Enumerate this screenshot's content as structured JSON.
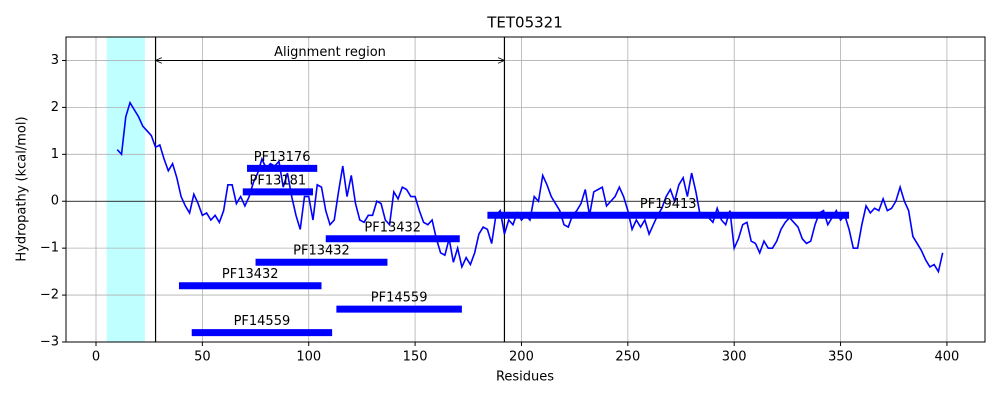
{
  "chart_data": {
    "type": "line",
    "title": "TET05321",
    "x_label": "Residues",
    "y_label": "Hydropathy (kcal/mol)",
    "xlim": [
      -14.1,
      417.9
    ],
    "ylim": [
      -3,
      3.5
    ],
    "xticks": [
      0,
      50,
      100,
      150,
      200,
      250,
      300,
      350,
      400
    ],
    "yticks": [
      {
        "value": -3,
        "label": "−3"
      },
      {
        "value": -2,
        "label": "−2"
      },
      {
        "value": -1,
        "label": "−1"
      },
      0,
      1,
      2,
      3
    ],
    "grid": true,
    "hline": 0,
    "highlight": {
      "x": [
        5,
        23
      ],
      "color": "#c0ffff"
    },
    "alignment_region": {
      "label": "Alignment region",
      "x": [
        28,
        192
      ],
      "y": 3
    },
    "series": [
      {
        "color": "#0000ff",
        "x": [
          10,
          12,
          14,
          16,
          18,
          20,
          22,
          24,
          26,
          28,
          30,
          32,
          34,
          36,
          38,
          40,
          42,
          44,
          46,
          48,
          50,
          52,
          54,
          56,
          58,
          60,
          62,
          64,
          66,
          68,
          70,
          72,
          74,
          76,
          78,
          80,
          82,
          84,
          86,
          88,
          90,
          92,
          94,
          96,
          98,
          100,
          102,
          104,
          106,
          108,
          110,
          112,
          114,
          116,
          118,
          120,
          122,
          124,
          126,
          128,
          130,
          132,
          134,
          136,
          138,
          140,
          142,
          144,
          146,
          148,
          150,
          152,
          154,
          156,
          158,
          160,
          162,
          164,
          166,
          168,
          170,
          172,
          174,
          176,
          178,
          180,
          182,
          184,
          186,
          188,
          190,
          192,
          194,
          196,
          198,
          200,
          202,
          204,
          206,
          208,
          210,
          212,
          214,
          216,
          218,
          220,
          222,
          224,
          226,
          228,
          230,
          232,
          234,
          236,
          238,
          240,
          242,
          244,
          246,
          248,
          250,
          252,
          254,
          256,
          258,
          260,
          262,
          264,
          266,
          268,
          270,
          272,
          274,
          276,
          278,
          280,
          282,
          284,
          286,
          288,
          290,
          292,
          294,
          296,
          298,
          300,
          302,
          304,
          306,
          308,
          310,
          312,
          314,
          316,
          318,
          320,
          322,
          324,
          326,
          328,
          330,
          332,
          334,
          336,
          338,
          340,
          342,
          344,
          346,
          348,
          350,
          352,
          354,
          356,
          358,
          360,
          362,
          364,
          366,
          368,
          370,
          372,
          374,
          376,
          378,
          380,
          382,
          384,
          386,
          388,
          390,
          392,
          394,
          396,
          398
        ],
        "values": [
          1.1,
          1.0,
          1.8,
          2.1,
          1.95,
          1.8,
          1.6,
          1.5,
          1.4,
          1.15,
          1.2,
          0.9,
          0.65,
          0.8,
          0.5,
          0.1,
          -0.1,
          -0.25,
          0.15,
          -0.05,
          -0.3,
          -0.25,
          -0.4,
          -0.3,
          -0.45,
          -0.2,
          0.35,
          0.35,
          -0.05,
          0.1,
          -0.1,
          0.1,
          0.4,
          0.6,
          0.9,
          0.7,
          0.8,
          0.75,
          0.85,
          0.3,
          0.6,
          0.1,
          -0.3,
          -0.6,
          0.1,
          0.1,
          -0.4,
          0.35,
          0.3,
          -0.2,
          -0.5,
          -0.4,
          0.2,
          0.75,
          0.1,
          0.55,
          -0.05,
          -0.4,
          -0.45,
          -0.3,
          -0.3,
          0.0,
          -0.05,
          -0.4,
          -0.5,
          0.2,
          0.05,
          0.3,
          0.25,
          0.1,
          0.1,
          -0.2,
          -0.45,
          -0.5,
          -0.4,
          -0.8,
          -1.1,
          -1.15,
          -0.8,
          -1.3,
          -1.0,
          -1.4,
          -1.2,
          -1.35,
          -1.1,
          -0.7,
          -0.55,
          -0.6,
          -0.9,
          -0.3,
          -0.2,
          -0.7,
          -0.4,
          -0.5,
          -0.25,
          -0.4,
          -0.3,
          -0.4,
          0.1,
          0.0,
          0.55,
          0.35,
          0.1,
          -0.05,
          -0.2,
          -0.5,
          -0.55,
          -0.3,
          -0.2,
          -0.05,
          0.25,
          -0.3,
          0.2,
          0.25,
          0.3,
          -0.1,
          0.0,
          0.1,
          0.3,
          0.1,
          -0.2,
          -0.6,
          -0.4,
          -0.55,
          -0.4,
          -0.7,
          -0.5,
          -0.3,
          -0.15,
          0.1,
          0.25,
          0.0,
          0.35,
          0.5,
          0.1,
          0.6,
          0.2,
          -0.3,
          -0.25,
          -0.35,
          -0.45,
          -0.15,
          -0.4,
          -0.5,
          -0.2,
          -1.0,
          -0.8,
          -0.5,
          -0.45,
          -0.85,
          -0.9,
          -1.1,
          -0.85,
          -1.0,
          -1.0,
          -0.85,
          -0.6,
          -0.45,
          -0.35,
          -0.45,
          -0.55,
          -0.8,
          -0.9,
          -0.85,
          -0.5,
          -0.25,
          -0.2,
          -0.5,
          -0.35,
          -0.2,
          -0.4,
          -0.3,
          -0.6,
          -1.0,
          -1.0,
          -0.5,
          -0.1,
          -0.25,
          -0.15,
          -0.2,
          0.05,
          -0.2,
          -0.15,
          0.0,
          0.3,
          0.0,
          -0.2,
          -0.75,
          -0.9,
          -1.05,
          -1.25,
          -1.4,
          -1.35,
          -1.5,
          -1.1
        ]
      }
    ],
    "domains": {
      "color": "#0000ff",
      "items": [
        {
          "name": "PF13176",
          "start": 71,
          "end": 104,
          "y": 0.7
        },
        {
          "name": "PF13181",
          "start": 69,
          "end": 102,
          "y": 0.2
        },
        {
          "name": "PF19413",
          "start": 184,
          "end": 354,
          "y": -0.3
        },
        {
          "name": "PF13432",
          "start": 108,
          "end": 171,
          "y": -0.8
        },
        {
          "name": "PF13432",
          "start": 75,
          "end": 137,
          "y": -1.3
        },
        {
          "name": "PF13432",
          "start": 39,
          "end": 106,
          "y": -1.8
        },
        {
          "name": "PF14559",
          "start": 113,
          "end": 172,
          "y": -2.3
        },
        {
          "name": "PF14559",
          "start": 45,
          "end": 111,
          "y": -2.8
        }
      ]
    }
  }
}
